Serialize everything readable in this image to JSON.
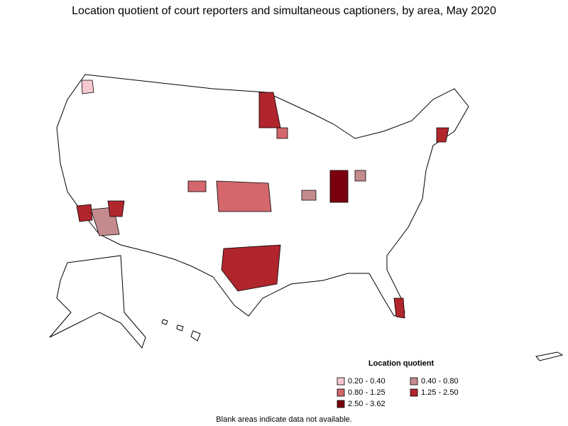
{
  "header": {
    "title": "Location quotient of court reporters and simultaneous captioners, by area, May 2020"
  },
  "legend": {
    "title": "Location quotient",
    "items": [
      {
        "label": "0.20 - 0.40",
        "color": "#f7c8cf"
      },
      {
        "label": "0.40 - 0.80",
        "color": "#c48b8e"
      },
      {
        "label": "0.80 - 1.25",
        "color": "#d3676b"
      },
      {
        "label": "1.25 - 2.50",
        "color": "#b1262d"
      },
      {
        "label": "2.50 - 3.62",
        "color": "#7a0010"
      }
    ]
  },
  "note": "Blank areas indicate data not available."
}
